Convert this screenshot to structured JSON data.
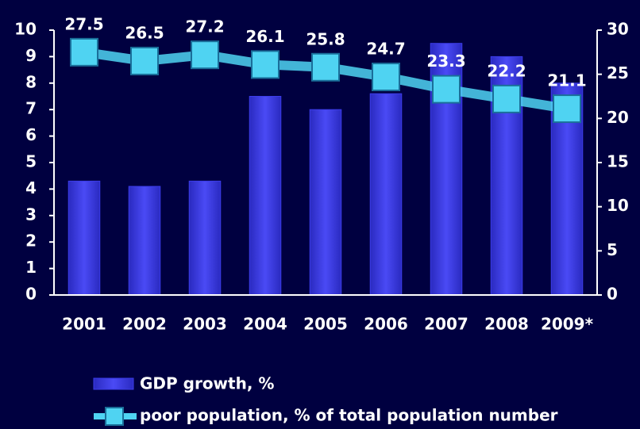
{
  "chart_data": {
    "type": "bar-line",
    "categories": [
      "2001",
      "2002",
      "2003",
      "2004",
      "2005",
      "2006",
      "2007",
      "2008",
      "2009*"
    ],
    "series": [
      {
        "name": "GDP growth, %",
        "type": "bar",
        "color": "#3c3ce8",
        "values": [
          4.3,
          4.1,
          4.3,
          7.5,
          7.0,
          7.6,
          9.5,
          9.0,
          8.0
        ]
      },
      {
        "name": "poor population, % of total population number",
        "type": "line",
        "axis": "y2",
        "color": "#4fd3f2",
        "values": [
          27.5,
          26.5,
          27.2,
          26.1,
          25.8,
          24.7,
          23.3,
          22.2,
          21.1
        ]
      }
    ],
    "ylim": [
      0,
      10
    ],
    "yticks": [
      0,
      1,
      2,
      3,
      4,
      5,
      6,
      7,
      8,
      9,
      10
    ],
    "y2lim": [
      0,
      30
    ],
    "y2ticks": [
      0,
      5,
      10,
      15,
      20,
      25,
      30
    ]
  }
}
